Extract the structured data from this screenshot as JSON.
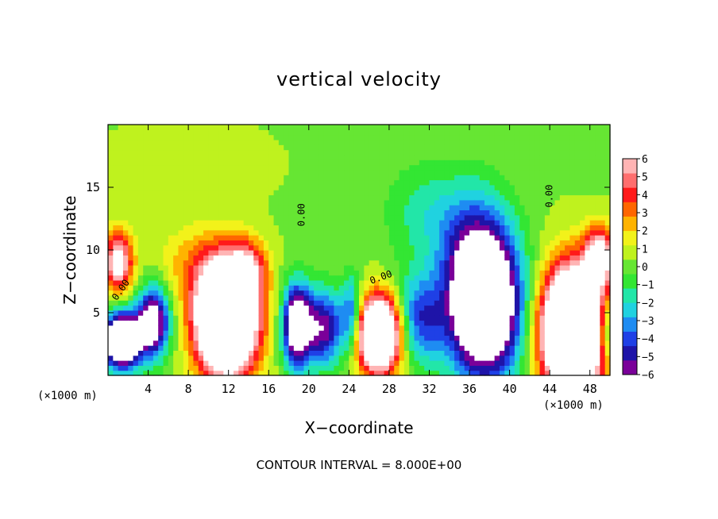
{
  "chart_data": {
    "type": "heatmap",
    "title": "vertical velocity",
    "xlabel": "X−coordinate",
    "ylabel": "Z−coordinate",
    "x_unit_left": "(×1000 m)",
    "x_unit_right": "(×1000 m)",
    "footer": "CONTOUR INTERVAL = 8.000E+00",
    "xlim": [
      0,
      50
    ],
    "ylim": [
      0,
      20
    ],
    "xticks": [
      4,
      8,
      12,
      16,
      20,
      24,
      28,
      32,
      36,
      40,
      44,
      48
    ],
    "yticks": [
      5,
      10,
      15
    ],
    "colorbar": {
      "min": -6,
      "max": 6,
      "ticks": [
        6,
        5,
        4,
        3,
        2,
        1,
        0,
        -1,
        -2,
        -3,
        -4,
        -5,
        -6
      ],
      "tick_labels": [
        "6",
        "5",
        "4",
        "3",
        "2",
        "1",
        "0",
        "−1",
        "−2",
        "−3",
        "−4",
        "−5",
        "−6"
      ],
      "colors": [
        "#7a0099",
        "#1e14a8",
        "#1f40e6",
        "#1e8cf2",
        "#20d2e0",
        "#22e6a8",
        "#33e633",
        "#66e633",
        "#bff21e",
        "#f2f21a",
        "#ffb300",
        "#ff6600",
        "#ff1a1a",
        "#ff6e6e",
        "#ffb4b4"
      ]
    },
    "contour_labels": [
      {
        "text": "0.00",
        "x": 19.3,
        "y": 12.8,
        "angle": -90
      },
      {
        "text": "0.00",
        "x": 44.0,
        "y": 14.3,
        "angle": -90
      },
      {
        "text": "0.00",
        "x": 1.3,
        "y": 6.8,
        "angle": -55
      },
      {
        "text": "0.00",
        "x": 27.2,
        "y": 7.8,
        "angle": -20
      }
    ],
    "features": [
      {
        "sign": "up",
        "x": 1.0,
        "z": 9.0,
        "rx": 1.5,
        "rz": 2.5,
        "value": 6.5
      },
      {
        "sign": "down",
        "x": 1.4,
        "z": 2.8,
        "rx": 1.8,
        "rz": 2.2,
        "value": -12
      },
      {
        "sign": "down",
        "x": 4.5,
        "z": 4.3,
        "rx": 1.6,
        "rz": 2.8,
        "value": -8
      },
      {
        "sign": "up",
        "x": 11.8,
        "z": 4.6,
        "rx": 3.0,
        "rz": 4.4,
        "value": 16
      },
      {
        "sign": "up",
        "x": 14.0,
        "z": 8.5,
        "rx": 1.8,
        "rz": 2.2,
        "value": 4
      },
      {
        "sign": "up",
        "x": 8.5,
        "z": 9.0,
        "rx": 4.0,
        "rz": 3.0,
        "value": 1.8
      },
      {
        "sign": "down",
        "x": 18.8,
        "z": 4.0,
        "rx": 1.4,
        "rz": 3.2,
        "value": -9
      },
      {
        "sign": "down",
        "x": 21.5,
        "z": 3.8,
        "rx": 2.0,
        "rz": 3.0,
        "value": -6
      },
      {
        "sign": "down",
        "x": 24.3,
        "z": 4.8,
        "rx": 1.0,
        "rz": 3.0,
        "value": -4.5
      },
      {
        "sign": "up",
        "x": 27.0,
        "z": 3.3,
        "rx": 2.2,
        "rz": 3.0,
        "value": 13
      },
      {
        "sign": "down",
        "x": 31.0,
        "z": 4.5,
        "rx": 2.5,
        "rz": 3.5,
        "value": -4.5
      },
      {
        "sign": "down",
        "x": 37.5,
        "z": 5.5,
        "rx": 3.5,
        "rz": 5.5,
        "value": -12
      },
      {
        "sign": "down",
        "x": 36.5,
        "z": 10.5,
        "rx": 3.5,
        "rz": 5.0,
        "value": -3
      },
      {
        "sign": "down",
        "x": 31.5,
        "z": 13.0,
        "rx": 4.0,
        "rz": 4.0,
        "value": -1.8
      },
      {
        "sign": "up",
        "x": 46.3,
        "z": 3.6,
        "rx": 3.0,
        "rz": 4.8,
        "value": 17
      },
      {
        "sign": "up",
        "x": 49.0,
        "z": 9.5,
        "rx": 1.5,
        "rz": 2.3,
        "value": 7
      },
      {
        "sign": "down",
        "x": 49.6,
        "z": 3.5,
        "rx": 0.8,
        "rz": 2.5,
        "value": -4
      },
      {
        "sign": "up",
        "x": 8.0,
        "z": 17.0,
        "rx": 8.0,
        "rz": 3.0,
        "value": 0.5
      }
    ]
  }
}
